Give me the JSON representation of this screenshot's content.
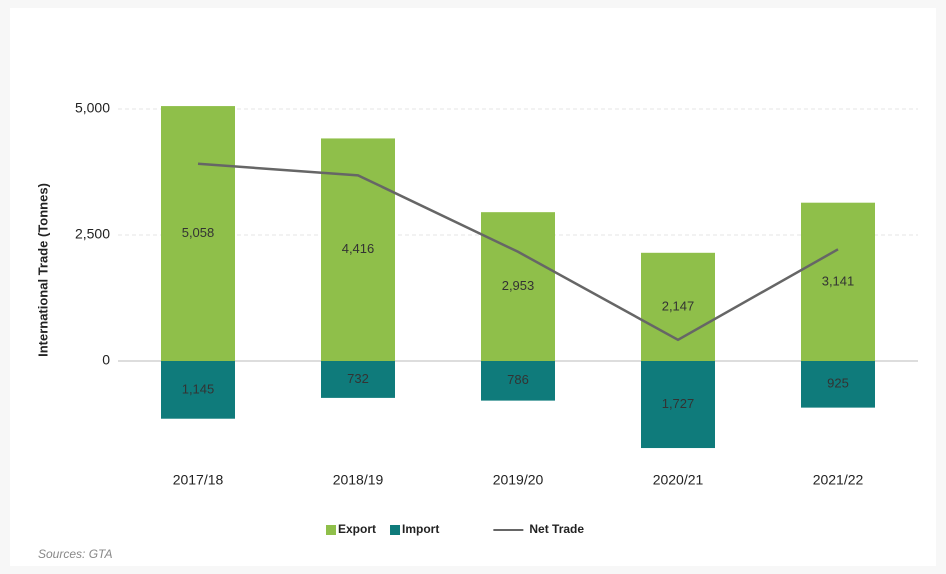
{
  "chart_data": {
    "type": "bar",
    "stacked": true,
    "y_label": "International Trade (Tonnes)",
    "source": "Sources: GTA",
    "categories": [
      "2017/18",
      "2018/19",
      "2019/20",
      "2020/21",
      "2021/22"
    ],
    "series": [
      {
        "name": "Export",
        "type": "bar",
        "color": "#8fbf4a",
        "values": [
          5058,
          4416,
          2953,
          2147,
          3141
        ],
        "value_labels": [
          "5,058",
          "4,416",
          "2,953",
          "2,147",
          "3,141"
        ]
      },
      {
        "name": "Import",
        "type": "bar",
        "color": "#0f7b7b",
        "values": [
          -1145,
          -732,
          -786,
          -1727,
          -925
        ],
        "value_labels": [
          "1,145",
          "732",
          "786",
          "1,727",
          "925"
        ]
      },
      {
        "name": "Net Trade",
        "type": "line",
        "color": "#666666",
        "values": [
          3913,
          3684,
          2167,
          420,
          2216
        ]
      }
    ],
    "ylim": [
      -2000,
      5500
    ],
    "yticks": [
      0,
      {
        "value": 2500,
        "label": "2,500"
      },
      {
        "value": 5000,
        "label": "5,000"
      }
    ],
    "grid": true,
    "legend": "bottom"
  }
}
